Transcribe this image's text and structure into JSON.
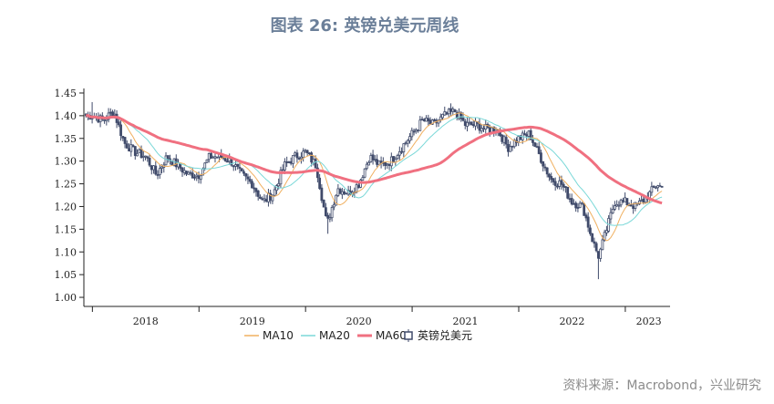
{
  "title": "图表 26: 英镑兑美元周线",
  "source": "资料来源：Macrobond，兴业研究",
  "colors": {
    "candle": "#404b6b",
    "ma10": "#f0b060",
    "ma20": "#7ad8d8",
    "ma60": "#f07080"
  },
  "chart_data": {
    "type": "candlestick",
    "title": "图表 26: 英镑兑美元周线",
    "xlabel": "",
    "ylabel": "",
    "ylim": [
      0.98,
      1.46
    ],
    "y_ticks": [
      "1.00",
      "1.05",
      "1.10",
      "1.15",
      "1.20",
      "1.25",
      "1.30",
      "1.35",
      "1.40",
      "1.45"
    ],
    "x_tick_labels": [
      "2018",
      "2019",
      "2020",
      "2021",
      "2022",
      "2023"
    ],
    "x_range": [
      2017.92,
      2023.42
    ],
    "legend_position": "bottom",
    "series": [
      {
        "name": "MA10",
        "style": "line"
      },
      {
        "name": "MA20",
        "style": "line"
      },
      {
        "name": "MA60",
        "style": "line"
      },
      {
        "name": "英镑兑美元",
        "style": "candlestick"
      }
    ],
    "close_anchors": [
      {
        "t": 2018.0,
        "v": 1.4
      },
      {
        "t": 2018.1,
        "v": 1.39
      },
      {
        "t": 2018.2,
        "v": 1.41
      },
      {
        "t": 2018.3,
        "v": 1.34
      },
      {
        "t": 2018.4,
        "v": 1.32
      },
      {
        "t": 2018.5,
        "v": 1.31
      },
      {
        "t": 2018.6,
        "v": 1.27
      },
      {
        "t": 2018.7,
        "v": 1.31
      },
      {
        "t": 2018.8,
        "v": 1.29
      },
      {
        "t": 2018.9,
        "v": 1.27
      },
      {
        "t": 2019.0,
        "v": 1.27
      },
      {
        "t": 2019.1,
        "v": 1.31
      },
      {
        "t": 2019.2,
        "v": 1.31
      },
      {
        "t": 2019.3,
        "v": 1.3
      },
      {
        "t": 2019.4,
        "v": 1.27
      },
      {
        "t": 2019.5,
        "v": 1.25
      },
      {
        "t": 2019.6,
        "v": 1.21
      },
      {
        "t": 2019.7,
        "v": 1.23
      },
      {
        "t": 2019.8,
        "v": 1.29
      },
      {
        "t": 2019.9,
        "v": 1.31
      },
      {
        "t": 2020.0,
        "v": 1.32
      },
      {
        "t": 2020.1,
        "v": 1.29
      },
      {
        "t": 2020.2,
        "v": 1.16
      },
      {
        "t": 2020.3,
        "v": 1.24
      },
      {
        "t": 2020.4,
        "v": 1.23
      },
      {
        "t": 2020.5,
        "v": 1.25
      },
      {
        "t": 2020.6,
        "v": 1.31
      },
      {
        "t": 2020.7,
        "v": 1.29
      },
      {
        "t": 2020.8,
        "v": 1.3
      },
      {
        "t": 2020.9,
        "v": 1.33
      },
      {
        "t": 2021.0,
        "v": 1.36
      },
      {
        "t": 2021.1,
        "v": 1.39
      },
      {
        "t": 2021.2,
        "v": 1.38
      },
      {
        "t": 2021.3,
        "v": 1.4
      },
      {
        "t": 2021.4,
        "v": 1.41
      },
      {
        "t": 2021.5,
        "v": 1.38
      },
      {
        "t": 2021.6,
        "v": 1.38
      },
      {
        "t": 2021.7,
        "v": 1.37
      },
      {
        "t": 2021.8,
        "v": 1.37
      },
      {
        "t": 2021.9,
        "v": 1.33
      },
      {
        "t": 2022.0,
        "v": 1.35
      },
      {
        "t": 2022.1,
        "v": 1.36
      },
      {
        "t": 2022.2,
        "v": 1.31
      },
      {
        "t": 2022.3,
        "v": 1.26
      },
      {
        "t": 2022.4,
        "v": 1.25
      },
      {
        "t": 2022.5,
        "v": 1.21
      },
      {
        "t": 2022.6,
        "v": 1.2
      },
      {
        "t": 2022.7,
        "v": 1.12
      },
      {
        "t": 2022.75,
        "v": 1.09
      },
      {
        "t": 2022.8,
        "v": 1.13
      },
      {
        "t": 2022.9,
        "v": 1.21
      },
      {
        "t": 2023.0,
        "v": 1.21
      },
      {
        "t": 2023.1,
        "v": 1.2
      },
      {
        "t": 2023.2,
        "v": 1.22
      },
      {
        "t": 2023.3,
        "v": 1.25
      },
      {
        "t": 2023.35,
        "v": 1.24
      }
    ],
    "wick_extremes": [
      {
        "t": 2018.0,
        "high": 1.43
      },
      {
        "t": 2020.2,
        "low": 1.14
      },
      {
        "t": 2021.3,
        "high": 1.42
      },
      {
        "t": 2022.74,
        "low": 1.04
      }
    ]
  }
}
